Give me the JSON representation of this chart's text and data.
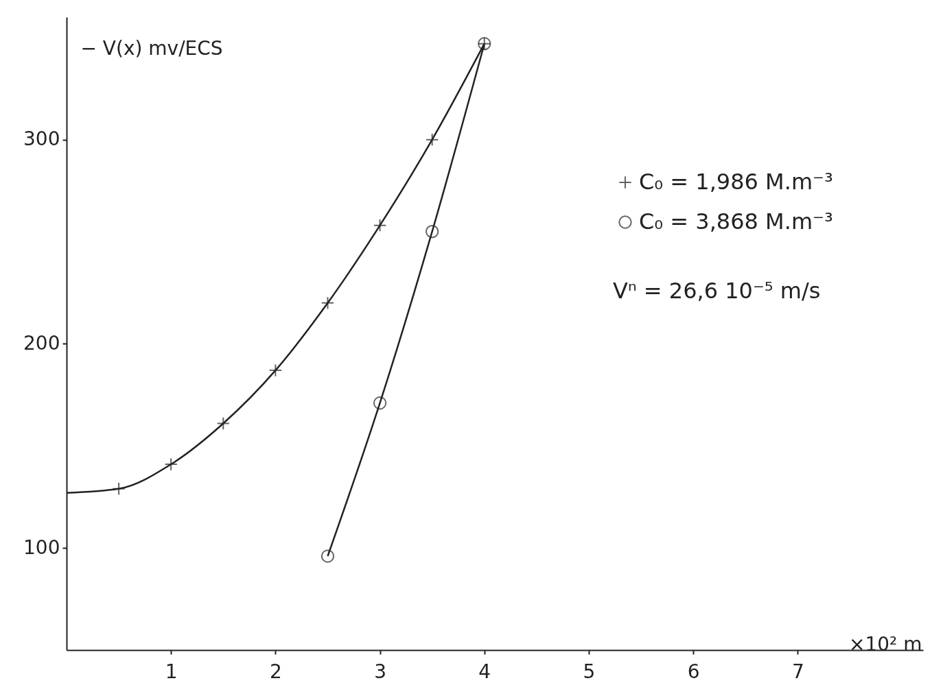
{
  "chart_data": {
    "type": "scatter",
    "xlabel": "×10² m",
    "ylabel": "− V(x) mv/ECS",
    "xlim": [
      0,
      8.2
    ],
    "xticks": [
      1,
      2,
      3,
      4,
      5,
      6,
      7
    ],
    "ylim": [
      50,
      360
    ],
    "yticks": [
      100,
      200,
      300
    ],
    "grid": false,
    "legend": "top right",
    "annotations": [
      "Vⁿ = 26,6 10⁻⁵ m/s"
    ],
    "series": [
      {
        "name": "C₀ = 1,986 M.m⁻³",
        "marker": "cross",
        "color": "#222222",
        "x": [
          0.5,
          1,
          1.5,
          2,
          2.5,
          3,
          3.5,
          4
        ],
        "values": [
          129,
          141,
          161,
          187,
          220,
          258,
          300,
          347
        ]
      },
      {
        "name": "C₀ = 3,868 M.m⁻³",
        "marker": "circle",
        "color": "#222222",
        "x": [
          2.5,
          3,
          3.5,
          4
        ],
        "values": [
          96,
          171,
          255,
          347
        ]
      },
      {
        "type": "line",
        "line_style": "solid",
        "marker": "none",
        "color": "#222222",
        "x": [
          0,
          0.5,
          1,
          1.5,
          2,
          2.5,
          3,
          3.5,
          4
        ],
        "values": [
          127,
          129,
          141,
          161,
          187,
          220,
          258,
          300,
          347
        ]
      },
      {
        "type": "line",
        "line_style": "solid",
        "marker": "none",
        "color": "#222222",
        "x": [
          2.5,
          3,
          3.5,
          4
        ],
        "values": [
          96,
          171,
          255,
          347
        ]
      }
    ]
  }
}
